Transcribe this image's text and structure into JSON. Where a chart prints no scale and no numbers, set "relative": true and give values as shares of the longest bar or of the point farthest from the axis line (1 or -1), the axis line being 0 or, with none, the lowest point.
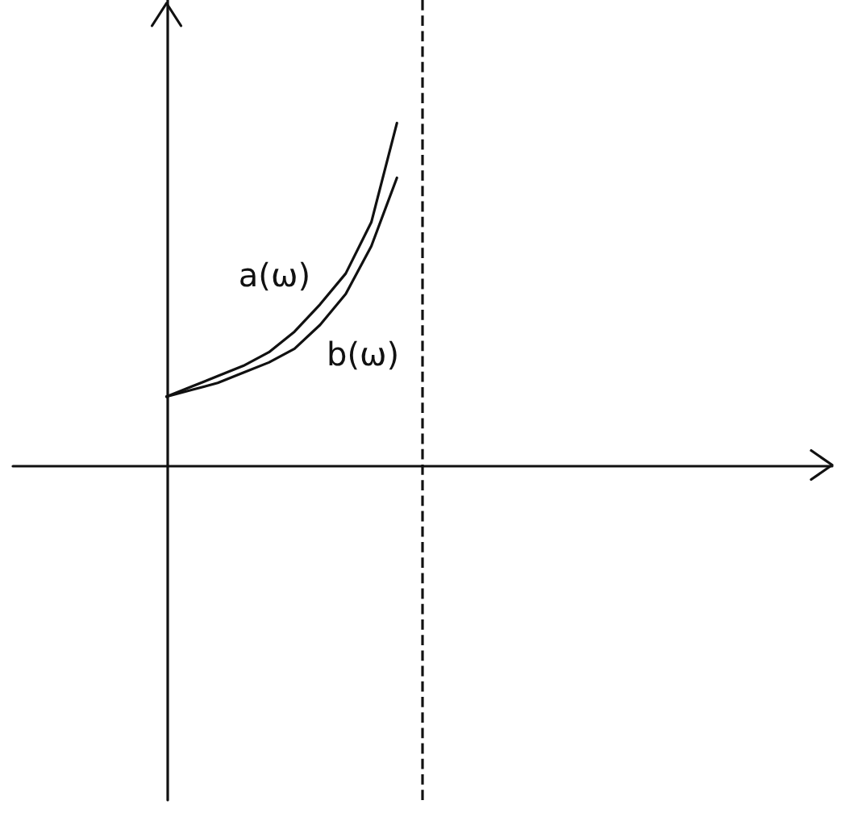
{
  "chart_data": {
    "type": "line",
    "relative": true,
    "grid": false,
    "legend": false,
    "marker": "none",
    "line_style": "solid",
    "categories": [
      null,
      null,
      null,
      null,
      null,
      null,
      null,
      null,
      null,
      null,
      null,
      null,
      null,
      null,
      null,
      null,
      null,
      null,
      null,
      null,
      null,
      null,
      null,
      null,
      null,
      null,
      null,
      null,
      null,
      null,
      null,
      null,
      null
    ],
    "series": [
      {
        "name": "a(ω)",
        "color": "#111111",
        "values": [
          null,
          null,
          null,
          null,
          null,
          null,
          0.2,
          0.23,
          0.26,
          0.29,
          0.33,
          0.39,
          0.47,
          0.56,
          0.71,
          1.0,
          null,
          null,
          null,
          null,
          null,
          null,
          null,
          null,
          null,
          null,
          null,
          null,
          null,
          null,
          null,
          null,
          null
        ]
      },
      {
        "name": "b(ω)",
        "color": "#111111",
        "values": [
          null,
          null,
          null,
          null,
          null,
          null,
          0.2,
          0.22,
          0.24,
          0.27,
          0.3,
          0.34,
          0.41,
          0.5,
          0.64,
          0.84,
          null,
          null,
          null,
          null,
          null,
          null,
          null,
          null,
          null,
          null,
          null,
          null,
          null,
          null,
          null,
          null,
          null
        ]
      }
    ],
    "ref_lines": [
      {
        "axis": "x",
        "value": null,
        "line_style": "dashed",
        "color": "#111111"
      }
    ]
  }
}
